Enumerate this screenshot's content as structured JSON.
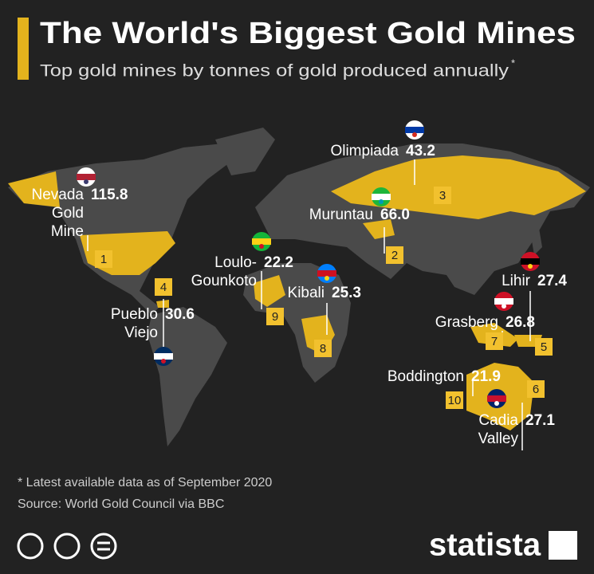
{
  "header": {
    "title": "The World's Biggest Gold Mines",
    "subtitle": "Top gold mines by tonnes of gold produced annually",
    "subtitle_mark": "*"
  },
  "mines": [
    {
      "rank": 1,
      "name_lines": [
        "Nevada",
        "Gold",
        "Mine"
      ],
      "value": "115.8"
    },
    {
      "rank": 2,
      "name_lines": [
        "Muruntau"
      ],
      "value": "66.0"
    },
    {
      "rank": 3,
      "name_lines": [
        "Olimpiada"
      ],
      "value": "43.2"
    },
    {
      "rank": 4,
      "name_lines": [
        "Pueblo",
        "Viejo"
      ],
      "value": "30.6"
    },
    {
      "rank": 5,
      "name_lines": [
        "Lihir"
      ],
      "value": "27.4"
    },
    {
      "rank": 6,
      "name_lines": [
        "Cadia",
        "Valley"
      ],
      "value": "27.1"
    },
    {
      "rank": 7,
      "name_lines": [
        "Grasberg"
      ],
      "value": "26.8"
    },
    {
      "rank": 8,
      "name_lines": [
        "Kibali"
      ],
      "value": "25.3"
    },
    {
      "rank": 9,
      "name_lines": [
        "Loulo-",
        "Gounkoto"
      ],
      "value": "22.2"
    },
    {
      "rank": 10,
      "name_lines": [
        "Boddington"
      ],
      "value": "21.9"
    }
  ],
  "footer": {
    "note": "* Latest available data as of September 2020",
    "source": "Source: World Gold Council via BBC",
    "brand": "statista"
  }
}
